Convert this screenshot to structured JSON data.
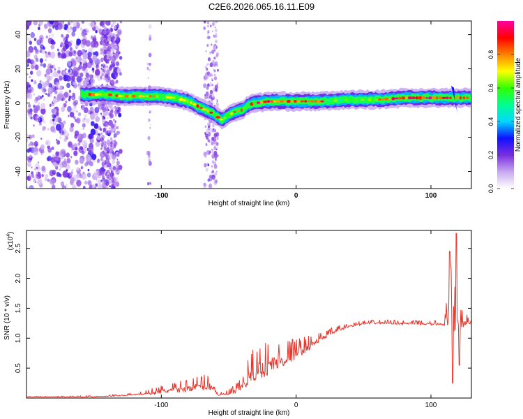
{
  "title": "C2E6.2026.065.16.11.E09",
  "chart_data": [
    {
      "type": "heatmap",
      "name": "spectrogram",
      "xlabel": "Height of straight line (km)",
      "ylabel": "Frequency (Hz)",
      "xlim": [
        -200,
        130
      ],
      "ylim": [
        -50,
        48
      ],
      "xticks": [
        -100,
        0,
        100
      ],
      "yticks": [
        -40,
        -20,
        0,
        20,
        40
      ],
      "ridge": {
        "x": [
          -160,
          -150,
          -140,
          -130,
          -120,
          -110,
          -100,
          -90,
          -80,
          -70,
          -62,
          -55,
          -50,
          -45,
          -40,
          -35,
          -30,
          -20,
          -10,
          0,
          20,
          40,
          60,
          80,
          100,
          112,
          118,
          125,
          130
        ],
        "y": [
          5,
          5,
          5,
          4,
          4,
          4,
          4,
          3,
          1,
          -3,
          -6,
          -10,
          -7,
          -5,
          -4,
          -1,
          0,
          1,
          1,
          1,
          1,
          2,
          2,
          3,
          3,
          3,
          3,
          3,
          3
        ]
      },
      "colorbar": {
        "label": "Normalized spectral amplitude",
        "ticks": [
          "0.0",
          "0.2",
          "0.4",
          "0.6",
          "0.8"
        ],
        "tick_values": [
          0.0,
          0.2,
          0.4,
          0.6,
          0.8
        ],
        "range": [
          0,
          1
        ],
        "colors": [
          "#ffffff",
          "#c8a8f0",
          "#7a2ee0",
          "#1010ff",
          "#00d8ff",
          "#00ff90",
          "#30ff00",
          "#ffff00",
          "#ff8000",
          "#ff0000",
          "#ff00a0"
        ]
      }
    },
    {
      "type": "line",
      "name": "snr",
      "xlabel": "Height of straight line (km)",
      "ylabel": "SNR (10 * v/v)",
      "scale_label": "(x10",
      "scale_exponent": "4",
      "scale_suffix": ")",
      "xlim": [
        -200,
        130
      ],
      "ylim": [
        0,
        2.8
      ],
      "xticks": [
        -100,
        0,
        100
      ],
      "yticks": [
        0.5,
        1.0,
        1.5,
        2.0,
        2.5
      ],
      "ytick_labels": [
        "0.5",
        "1.0",
        "1.5",
        "2.0",
        "2.5"
      ],
      "color": "#e8362c",
      "baseline": {
        "x": [
          -200,
          -150,
          -130,
          -110,
          -100,
          -90,
          -80,
          -70,
          -62,
          -58,
          -50,
          -45,
          -40,
          -35,
          -30,
          -20,
          -10,
          0,
          10,
          20,
          30,
          40,
          50,
          60,
          70,
          80,
          90,
          100,
          110,
          115,
          120,
          125,
          130
        ],
        "y": [
          0.02,
          0.02,
          0.04,
          0.07,
          0.1,
          0.12,
          0.15,
          0.18,
          0.18,
          0.05,
          0.06,
          0.1,
          0.18,
          0.3,
          0.4,
          0.5,
          0.6,
          0.72,
          0.85,
          1.0,
          1.12,
          1.2,
          1.24,
          1.25,
          1.25,
          1.24,
          1.24,
          1.23,
          1.23,
          1.25,
          1.2,
          1.24,
          1.25
        ]
      },
      "noise": {
        "x": [
          -200,
          -120,
          -100,
          -80,
          -62,
          -58,
          -40,
          -35,
          -25,
          -15,
          0,
          20,
          40,
          100,
          110,
          115,
          122,
          130
        ],
        "amp": [
          0.005,
          0.02,
          0.08,
          0.12,
          0.18,
          0.02,
          0.12,
          0.3,
          0.35,
          0.3,
          0.2,
          0.08,
          0.04,
          0.04,
          0.06,
          0.8,
          0.2,
          0.04
        ]
      },
      "spikes": [
        {
          "x": 114,
          "y": 2.45
        },
        {
          "x": 116,
          "y": 0.25
        },
        {
          "x": 119,
          "y": 2.75
        },
        {
          "x": 121,
          "y": 0.55
        }
      ]
    }
  ]
}
